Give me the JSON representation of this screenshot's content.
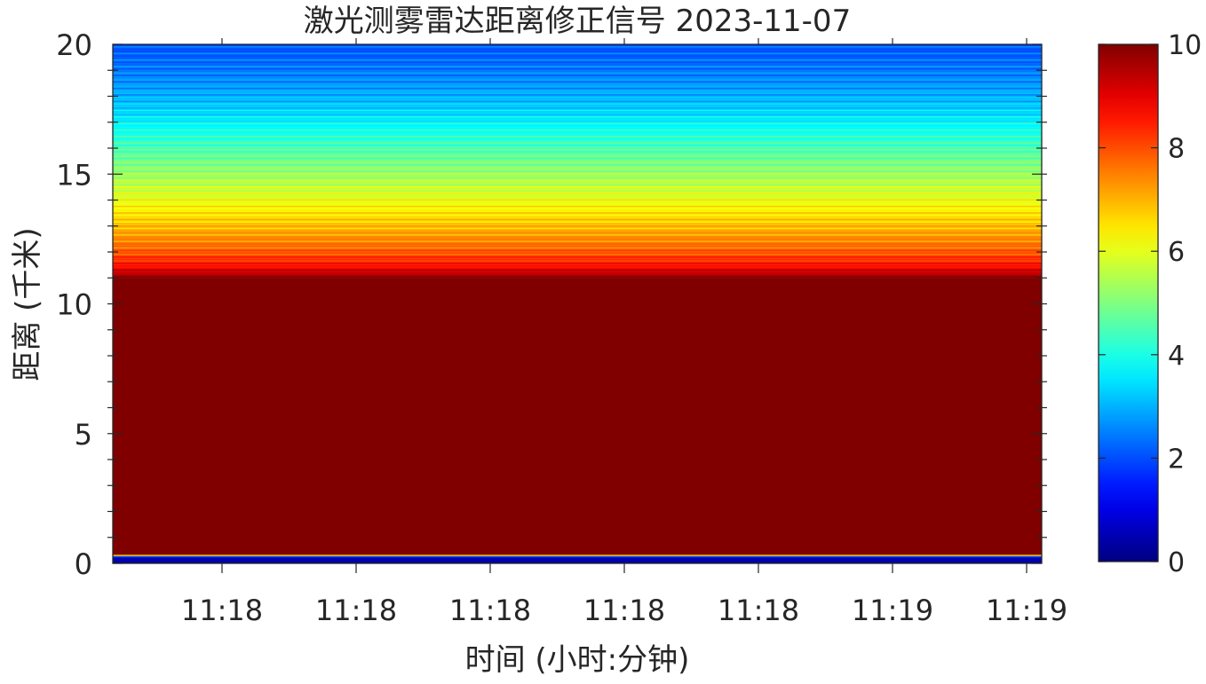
{
  "chart_data": {
    "type": "heatmap",
    "title": "激光测雾雷达距离修正信号 2023-11-07",
    "xlabel": "时间 (小时:分钟)",
    "ylabel": "距离 (千米)",
    "x_tick_labels": [
      "11:18",
      "11:18",
      "11:18",
      "11:18",
      "11:18",
      "11:19",
      "11:19"
    ],
    "y_ticks": [
      0,
      5,
      10,
      15,
      20
    ],
    "y_tick_labels": [
      "0",
      "5",
      "10",
      "15",
      "20"
    ],
    "ylim": [
      0,
      20
    ],
    "colorbar": {
      "ticks": [
        0,
        2,
        4,
        6,
        8,
        10
      ],
      "tick_labels": [
        "0",
        "2",
        "4",
        "6",
        "8",
        "10"
      ],
      "clim": [
        0,
        10
      ],
      "colormap": "jet"
    },
    "grid": false,
    "profile": {
      "distance_km": [
        0,
        0.25,
        0.3,
        0.35,
        11.0,
        11.5,
        12.0,
        12.5,
        13.0,
        13.5,
        14.0,
        14.5,
        15.0,
        15.5,
        16.0,
        16.5,
        17.0,
        17.5,
        18.0,
        18.5,
        19.0,
        19.5,
        20.0
      ],
      "value": [
        0.4,
        0.5,
        3.5,
        10,
        10,
        8.6,
        7.9,
        7.4,
        6.9,
        6.5,
        6.1,
        5.7,
        5.3,
        4.9,
        4.5,
        4.1,
        3.7,
        3.3,
        3.0,
        2.7,
        2.45,
        2.25,
        2.1
      ]
    }
  }
}
